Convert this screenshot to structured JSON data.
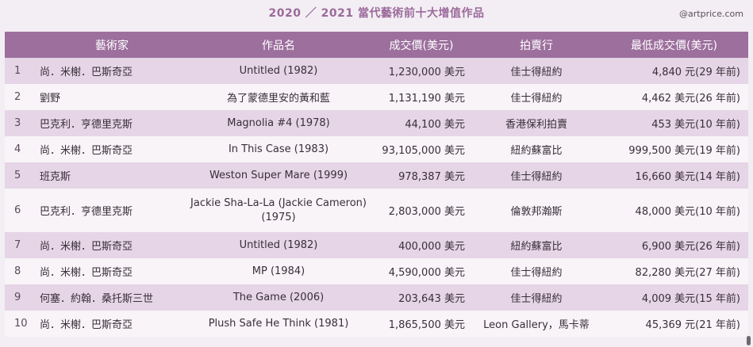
{
  "title": "2020 ／ 2021 當代藝術前十大增值作品",
  "source": "@artprice.com",
  "columns": [
    "",
    "藝術家",
    "作品名",
    "成交價(美元)",
    "拍賣行",
    "最低成交價(美元)"
  ],
  "rows": [
    {
      "rank": "1",
      "artist": "尚．米榭．巴斯奇亞",
      "work": "Untitled (1982)",
      "price": "1,230,000 美元",
      "house": "佳士得紐約",
      "low": "4,840 元(29 年前)"
    },
    {
      "rank": "2",
      "artist": "劉野",
      "work": "為了蒙德里安的黃和藍",
      "price": "1,131,190 美元",
      "house": "佳士得紐約",
      "low": "4,462 美元(26 年前)"
    },
    {
      "rank": "3",
      "artist": "巴克利．亨德里克斯",
      "work": "Magnolia #4 (1978)",
      "price": "44,100 美元",
      "house": "香港保利拍賣",
      "low": "453 美元(10 年前)"
    },
    {
      "rank": "4",
      "artist": "尚．米榭．巴斯奇亞",
      "work": "In This Case (1983)",
      "price": "93,105,000 美元",
      "house": "紐約蘇富比",
      "low": "999,500 美元(19 年前)"
    },
    {
      "rank": "5",
      "artist": "班克斯",
      "work": "Weston Super Mare (1999)",
      "price": "978,387 美元",
      "house": "佳士得紐約",
      "low": "16,660 美元(14 年前)"
    },
    {
      "rank": "6",
      "artist": "巴克利．亨德里克斯",
      "work": "Jackie Sha-La-La (Jackie Cameron) (1975)",
      "price": "2,803,000 美元",
      "house": "倫敦邦瀚斯",
      "low": "48,000 美元(10 年前)"
    },
    {
      "rank": "7",
      "artist": "尚．米榭．巴斯奇亞",
      "work": "Untitled (1982)",
      "price": "400,000 美元",
      "house": "紐約蘇富比",
      "low": "6,900 美元(26 年前)"
    },
    {
      "rank": "8",
      "artist": "尚．米榭．巴斯奇亞",
      "work": "MP (1984)",
      "price": "4,590,000 美元",
      "house": "佳士得紐約",
      "low": "82,280 美元(27 年前)"
    },
    {
      "rank": "9",
      "artist": "何塞．約翰．桑托斯三世",
      "work": "The Game (2006)",
      "price": "203,643 美元",
      "house": "佳士得紐約",
      "low": "4,009 美元(15 年前)"
    },
    {
      "rank": "10",
      "artist": "尚．米榭．巴斯奇亞",
      "work": "Plush Safe He Think (1981)",
      "price": "1,865,500 美元",
      "house": "Leon Gallery，馬卡蒂",
      "low": "45,369 元(21 年前)"
    }
  ]
}
